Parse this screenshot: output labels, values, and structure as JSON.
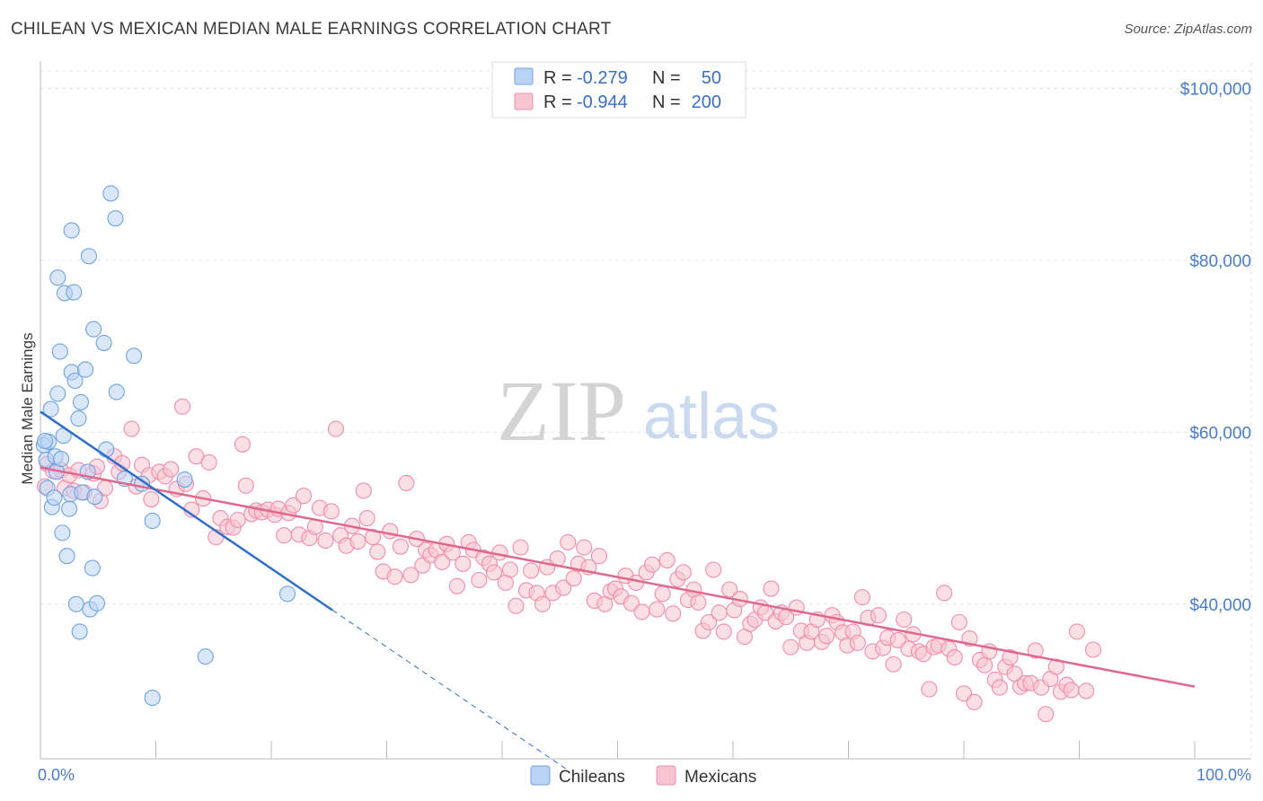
{
  "title": "CHILEAN VS MEXICAN MEDIAN MALE EARNINGS CORRELATION CHART",
  "source": "Source: ZipAtlas.com",
  "watermark": {
    "zip": "ZIP",
    "atlas": "atlas"
  },
  "colors": {
    "chileans": "#6fa3e0",
    "chileans_fill": "#b9d3f4",
    "chileans_line": "#2f6fcc",
    "mexicans": "#f08cab",
    "mexicans_fill": "#f7c4d4",
    "mexicans_line": "#e0688f",
    "tick_text": "#4a7cc7",
    "grid": "#e4e4e4"
  },
  "legend_top": {
    "rows": [
      {
        "r_label": "R =",
        "r_value": "-0.279",
        "n_label": "N =",
        "n_value": "50"
      },
      {
        "r_label": "R =",
        "r_value": "-0.944",
        "n_label": "N =",
        "n_value": "200"
      }
    ]
  },
  "legend_bottom": [
    "Chileans",
    "Mexicans"
  ],
  "chart_data": {
    "type": "scatter",
    "title": "CHILEAN VS MEXICAN MEDIAN MALE EARNINGS CORRELATION CHART",
    "xlabel": "",
    "ylabel": "Median Male Earnings",
    "xlim": [
      0,
      100
    ],
    "ylim": [
      22000,
      103000
    ],
    "x_tick_labels": [
      "0.0%",
      "100.0%"
    ],
    "y_ticks": [
      40000,
      60000,
      80000,
      100000
    ],
    "y_tick_labels": [
      "$40,000",
      "$60,000",
      "$80,000",
      "$100,000"
    ],
    "grid": true,
    "legend_position": "top-center",
    "series": [
      {
        "name": "Chileans",
        "r": -0.279,
        "n": 50,
        "trend": {
          "x0": 0,
          "y0": 62400,
          "x1": 25.3,
          "y1": 39300,
          "dash_to_x": 45.5
        },
        "points": [
          [
            0.3,
            58.5
          ],
          [
            0.5,
            56.8
          ],
          [
            0.6,
            53.5
          ],
          [
            0.7,
            58.9
          ],
          [
            0.9,
            62.7
          ],
          [
            1.0,
            51.3
          ],
          [
            1.2,
            52.4
          ],
          [
            1.3,
            57.2
          ],
          [
            1.4,
            55.4
          ],
          [
            1.5,
            64.5
          ],
          [
            1.5,
            78.0
          ],
          [
            1.7,
            69.4
          ],
          [
            1.8,
            56.9
          ],
          [
            1.9,
            48.3
          ],
          [
            2.0,
            59.6
          ],
          [
            2.1,
            76.2
          ],
          [
            2.3,
            45.6
          ],
          [
            2.5,
            51.1
          ],
          [
            2.6,
            52.8
          ],
          [
            2.7,
            83.5
          ],
          [
            2.7,
            67.0
          ],
          [
            2.9,
            76.3
          ],
          [
            3.0,
            66.0
          ],
          [
            3.1,
            40.0
          ],
          [
            3.3,
            61.6
          ],
          [
            3.4,
            36.8
          ],
          [
            3.5,
            63.5
          ],
          [
            3.6,
            53.0
          ],
          [
            3.9,
            67.3
          ],
          [
            4.1,
            55.4
          ],
          [
            4.2,
            80.5
          ],
          [
            4.5,
            44.2
          ],
          [
            4.3,
            39.4
          ],
          [
            4.6,
            72.0
          ],
          [
            4.7,
            52.5
          ],
          [
            4.9,
            40.1
          ],
          [
            5.5,
            70.4
          ],
          [
            5.7,
            58.0
          ],
          [
            6.1,
            87.8
          ],
          [
            6.5,
            84.9
          ],
          [
            6.6,
            64.7
          ],
          [
            7.3,
            54.6
          ],
          [
            8.1,
            68.9
          ],
          [
            8.8,
            54.0
          ],
          [
            9.7,
            29.1
          ],
          [
            9.7,
            49.7
          ],
          [
            12.5,
            54.5
          ],
          [
            14.3,
            33.9
          ],
          [
            21.4,
            41.2
          ],
          [
            0.4,
            59.0
          ]
        ]
      },
      {
        "name": "Mexicans",
        "r": -0.944,
        "n": 200,
        "trend": {
          "x0": 0,
          "y0": 55900,
          "x1": 100,
          "y1": 30400
        },
        "points": [
          [
            0.4,
            53.7
          ],
          [
            0.6,
            56.3
          ],
          [
            1.1,
            55.5
          ],
          [
            1.8,
            55.6
          ],
          [
            2.1,
            53.5
          ],
          [
            2.5,
            55.0
          ],
          [
            2.9,
            53.2
          ],
          [
            3.3,
            55.6
          ],
          [
            3.8,
            53.0
          ],
          [
            4.6,
            55.2
          ],
          [
            4.9,
            56.0
          ],
          [
            5.2,
            52.0
          ],
          [
            5.6,
            53.5
          ],
          [
            6.4,
            57.2
          ],
          [
            6.8,
            55.4
          ],
          [
            7.1,
            56.4
          ],
          [
            7.9,
            60.4
          ],
          [
            8.3,
            53.7
          ],
          [
            8.8,
            56.2
          ],
          [
            9.4,
            55.0
          ],
          [
            9.6,
            52.2
          ],
          [
            10.3,
            55.4
          ],
          [
            10.8,
            54.9
          ],
          [
            11.3,
            55.7
          ],
          [
            11.8,
            53.4
          ],
          [
            12.3,
            63.0
          ],
          [
            12.6,
            54.0
          ],
          [
            13.1,
            51.0
          ],
          [
            13.5,
            57.2
          ],
          [
            14.1,
            52.3
          ],
          [
            14.6,
            56.5
          ],
          [
            15.2,
            47.8
          ],
          [
            15.6,
            50.0
          ],
          [
            16.2,
            49.0
          ],
          [
            16.7,
            48.9
          ],
          [
            17.1,
            49.8
          ],
          [
            17.5,
            58.6
          ],
          [
            17.8,
            53.8
          ],
          [
            18.3,
            50.5
          ],
          [
            18.7,
            50.9
          ],
          [
            19.2,
            50.7
          ],
          [
            19.7,
            51.0
          ],
          [
            20.3,
            50.4
          ],
          [
            20.6,
            51.1
          ],
          [
            21.1,
            48.0
          ],
          [
            21.5,
            50.6
          ],
          [
            21.9,
            51.5
          ],
          [
            22.4,
            48.1
          ],
          [
            22.8,
            52.6
          ],
          [
            23.3,
            47.7
          ],
          [
            23.8,
            49.0
          ],
          [
            24.2,
            51.2
          ],
          [
            24.7,
            47.4
          ],
          [
            25.2,
            50.8
          ],
          [
            25.6,
            60.4
          ],
          [
            26.0,
            48.0
          ],
          [
            26.5,
            46.8
          ],
          [
            27.0,
            49.1
          ],
          [
            27.5,
            47.3
          ],
          [
            28.0,
            53.2
          ],
          [
            28.3,
            50.0
          ],
          [
            28.8,
            47.8
          ],
          [
            29.2,
            46.1
          ],
          [
            29.7,
            43.8
          ],
          [
            30.3,
            48.5
          ],
          [
            30.7,
            43.2
          ],
          [
            31.2,
            46.7
          ],
          [
            31.7,
            54.1
          ],
          [
            32.1,
            43.4
          ],
          [
            32.6,
            47.6
          ],
          [
            33.1,
            44.5
          ],
          [
            33.4,
            46.3
          ],
          [
            33.8,
            45.7
          ],
          [
            34.3,
            46.3
          ],
          [
            34.8,
            44.9
          ],
          [
            35.2,
            47.0
          ],
          [
            35.7,
            46.0
          ],
          [
            36.1,
            42.1
          ],
          [
            36.6,
            44.7
          ],
          [
            37.1,
            47.2
          ],
          [
            37.5,
            46.3
          ],
          [
            38.0,
            42.8
          ],
          [
            38.4,
            45.4
          ],
          [
            38.9,
            44.7
          ],
          [
            39.3,
            43.7
          ],
          [
            39.8,
            46.0
          ],
          [
            40.3,
            42.5
          ],
          [
            40.7,
            44.0
          ],
          [
            41.2,
            39.8
          ],
          [
            41.6,
            46.6
          ],
          [
            42.1,
            41.6
          ],
          [
            42.5,
            43.9
          ],
          [
            43.0,
            41.3
          ],
          [
            43.5,
            40.0
          ],
          [
            43.9,
            44.3
          ],
          [
            44.4,
            41.3
          ],
          [
            44.8,
            45.3
          ],
          [
            45.3,
            41.9
          ],
          [
            45.7,
            47.2
          ],
          [
            46.2,
            43.0
          ],
          [
            46.6,
            44.7
          ],
          [
            47.1,
            46.6
          ],
          [
            47.5,
            44.3
          ],
          [
            48.0,
            40.4
          ],
          [
            48.4,
            45.6
          ],
          [
            48.9,
            40.0
          ],
          [
            49.4,
            41.5
          ],
          [
            49.8,
            41.8
          ],
          [
            50.3,
            40.9
          ],
          [
            50.7,
            43.3
          ],
          [
            51.2,
            40.1
          ],
          [
            51.6,
            42.5
          ],
          [
            52.1,
            39.1
          ],
          [
            52.5,
            43.7
          ],
          [
            53.0,
            44.6
          ],
          [
            53.4,
            39.4
          ],
          [
            53.9,
            41.2
          ],
          [
            54.3,
            45.1
          ],
          [
            54.8,
            38.9
          ],
          [
            55.2,
            42.9
          ],
          [
            55.7,
            43.7
          ],
          [
            56.1,
            40.5
          ],
          [
            56.6,
            41.7
          ],
          [
            57.0,
            40.2
          ],
          [
            57.4,
            36.9
          ],
          [
            57.9,
            37.9
          ],
          [
            58.3,
            44.0
          ],
          [
            58.8,
            39.0
          ],
          [
            59.2,
            36.8
          ],
          [
            59.7,
            41.7
          ],
          [
            60.1,
            39.3
          ],
          [
            60.6,
            40.6
          ],
          [
            61.0,
            36.2
          ],
          [
            61.5,
            37.7
          ],
          [
            61.9,
            38.2
          ],
          [
            62.4,
            39.6
          ],
          [
            62.8,
            39.0
          ],
          [
            63.3,
            41.8
          ],
          [
            63.7,
            38.0
          ],
          [
            64.2,
            39.0
          ],
          [
            64.6,
            38.5
          ],
          [
            65.0,
            35.0
          ],
          [
            65.5,
            39.6
          ],
          [
            65.9,
            36.9
          ],
          [
            66.4,
            35.5
          ],
          [
            66.8,
            36.8
          ],
          [
            67.3,
            38.2
          ],
          [
            67.7,
            35.6
          ],
          [
            68.1,
            36.3
          ],
          [
            68.6,
            38.7
          ],
          [
            69.0,
            37.9
          ],
          [
            69.5,
            36.7
          ],
          [
            69.9,
            35.2
          ],
          [
            70.4,
            36.8
          ],
          [
            70.8,
            35.5
          ],
          [
            71.2,
            40.8
          ],
          [
            71.7,
            38.4
          ],
          [
            72.1,
            34.5
          ],
          [
            72.6,
            38.7
          ],
          [
            73.0,
            34.9
          ],
          [
            73.4,
            36.1
          ],
          [
            73.9,
            33.0
          ],
          [
            74.3,
            35.8
          ],
          [
            74.8,
            38.2
          ],
          [
            75.2,
            34.8
          ],
          [
            75.6,
            36.5
          ],
          [
            76.1,
            34.5
          ],
          [
            76.5,
            34.2
          ],
          [
            77.0,
            30.1
          ],
          [
            77.4,
            35.0
          ],
          [
            77.8,
            35.2
          ],
          [
            78.3,
            41.3
          ],
          [
            78.7,
            34.8
          ],
          [
            79.2,
            33.8
          ],
          [
            79.6,
            37.9
          ],
          [
            80.0,
            29.6
          ],
          [
            80.5,
            36.0
          ],
          [
            80.9,
            28.6
          ],
          [
            81.4,
            33.5
          ],
          [
            81.8,
            32.9
          ],
          [
            82.2,
            34.5
          ],
          [
            82.7,
            31.2
          ],
          [
            83.1,
            30.3
          ],
          [
            83.6,
            32.7
          ],
          [
            84.0,
            33.8
          ],
          [
            84.4,
            31.9
          ],
          [
            84.9,
            30.4
          ],
          [
            85.3,
            30.8
          ],
          [
            85.8,
            30.8
          ],
          [
            86.2,
            34.6
          ],
          [
            86.7,
            30.3
          ],
          [
            87.1,
            27.2
          ],
          [
            87.5,
            31.3
          ],
          [
            88.0,
            32.7
          ],
          [
            88.4,
            29.8
          ],
          [
            88.9,
            30.6
          ],
          [
            89.3,
            30.0
          ],
          [
            89.8,
            36.8
          ],
          [
            90.6,
            29.9
          ],
          [
            91.2,
            34.7
          ]
        ]
      }
    ]
  }
}
